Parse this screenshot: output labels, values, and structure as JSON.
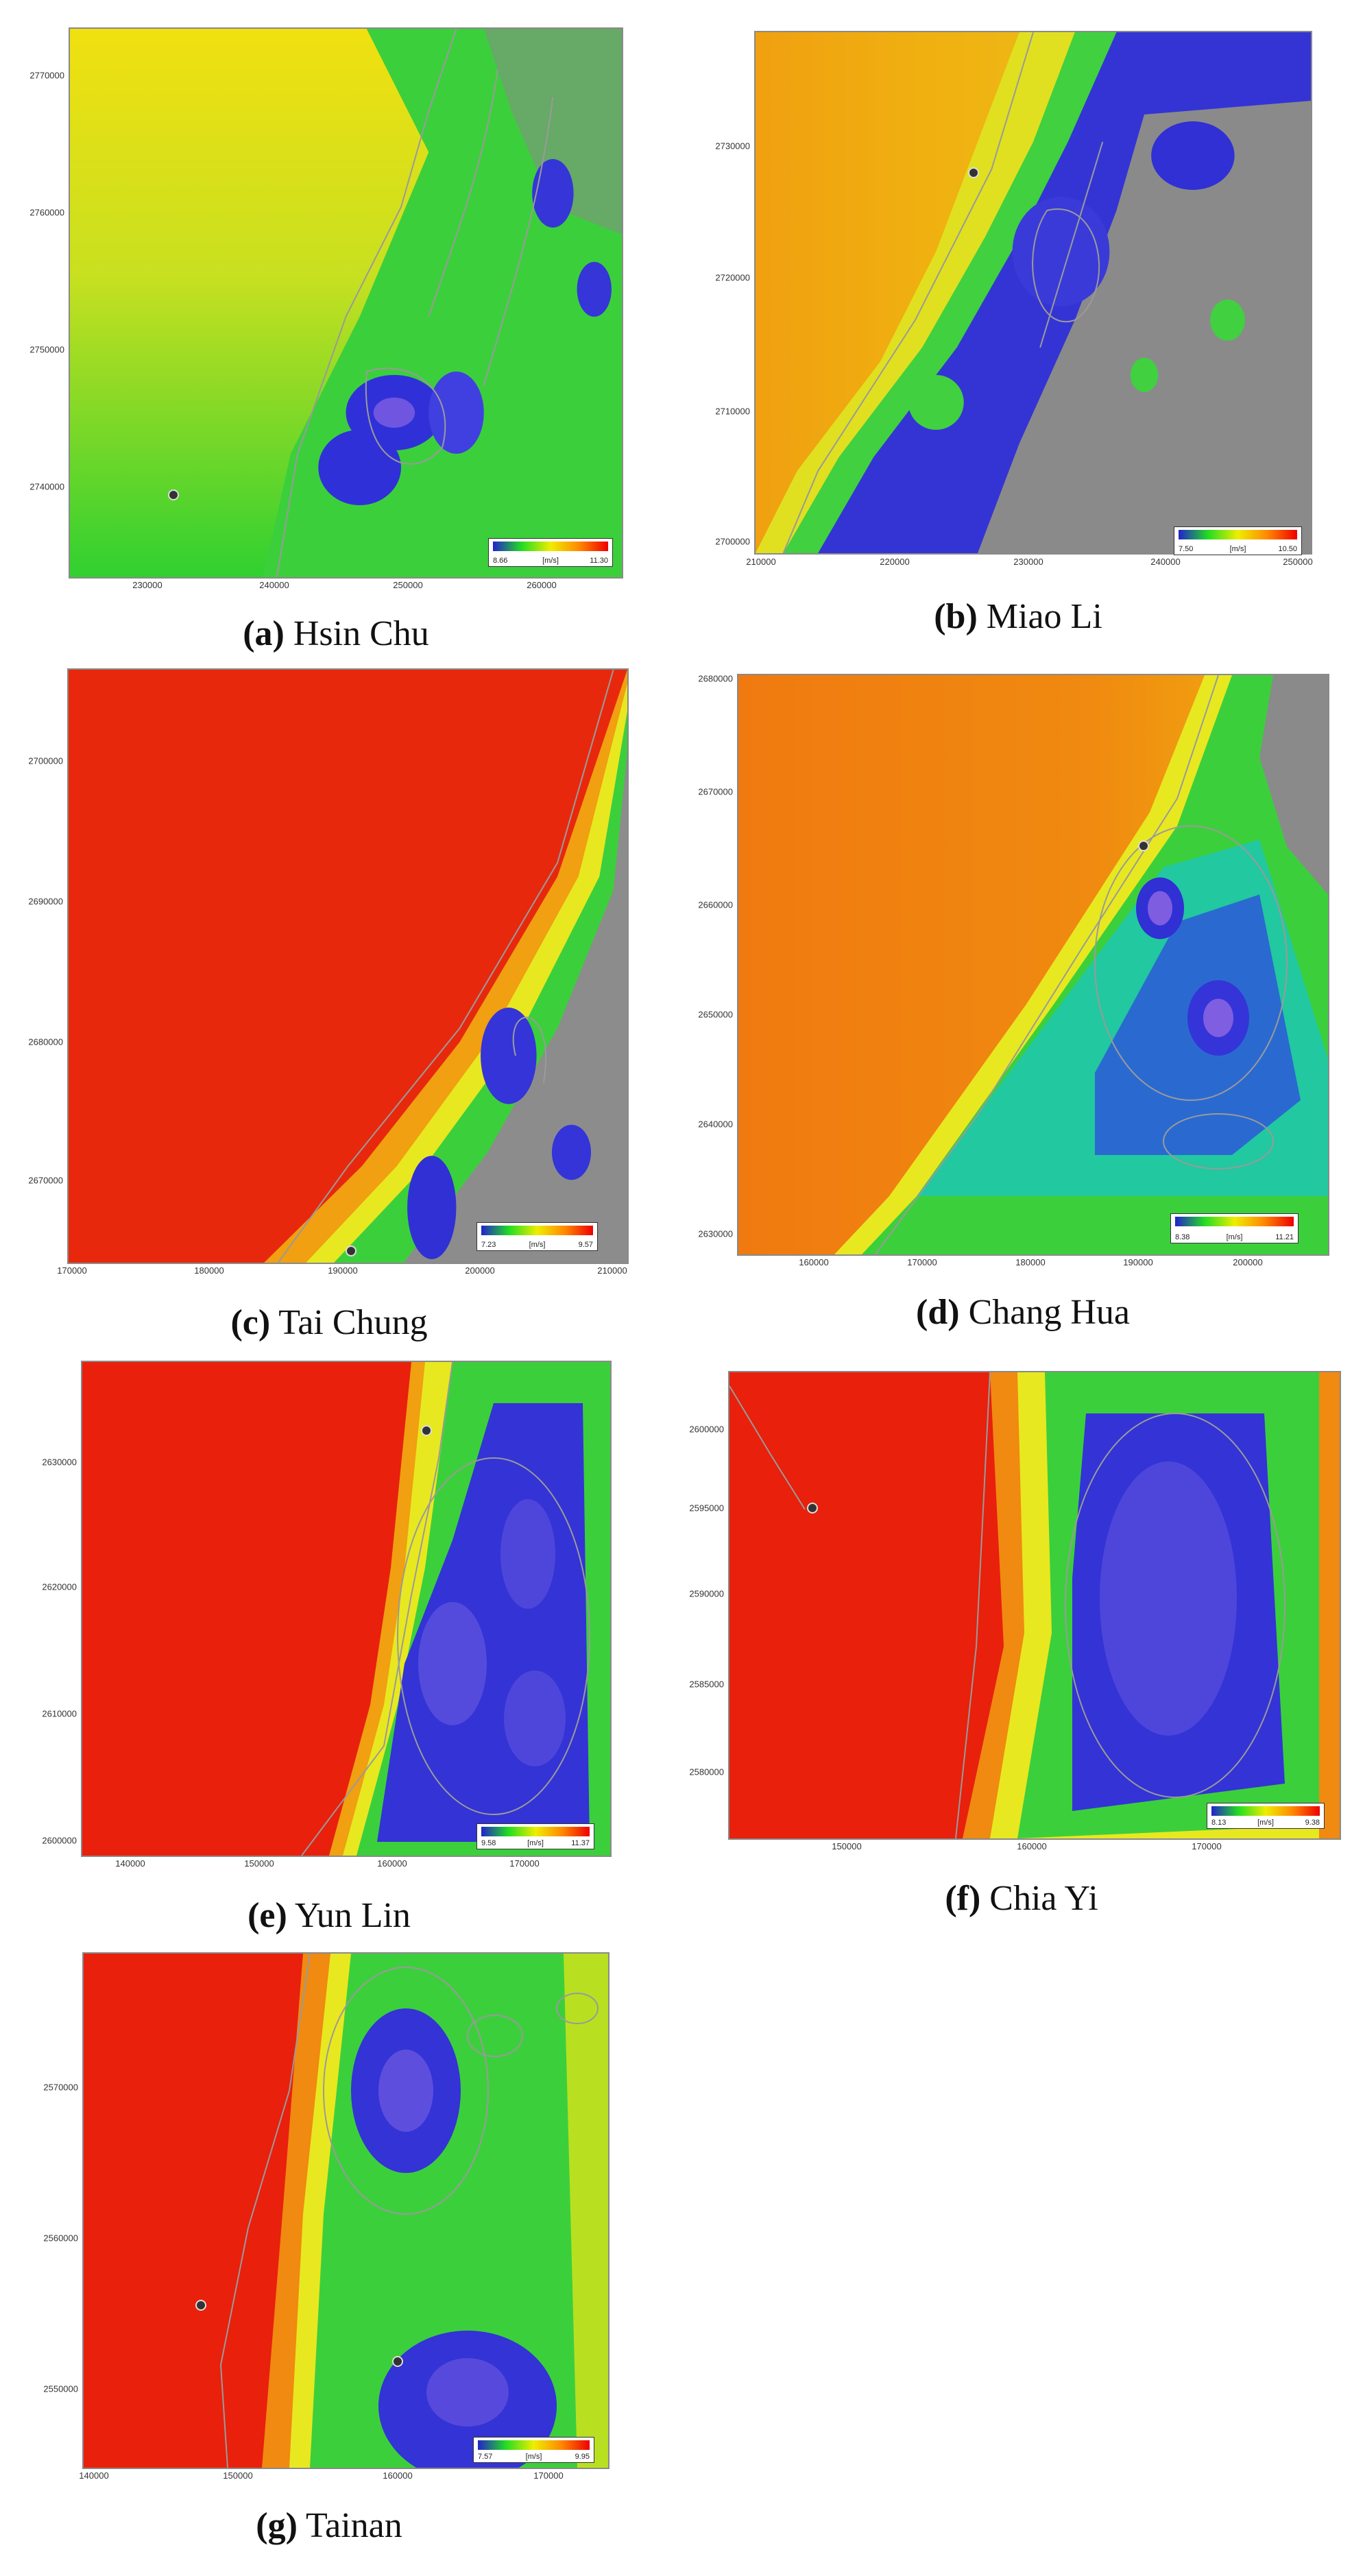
{
  "figure": {
    "panels": [
      {
        "id": "a",
        "letter": "(a)",
        "name": "Hsin Chu",
        "y_ticks": [
          "2770000",
          "2760000",
          "2750000",
          "2740000"
        ],
        "x_ticks": [
          "230000",
          "240000",
          "250000",
          "260000"
        ],
        "legend": {
          "min": "8.66",
          "unit": "[m/s]",
          "max": "11.30"
        }
      },
      {
        "id": "b",
        "letter": "(b)",
        "name": "Miao Li",
        "y_ticks": [
          "2730000",
          "2720000",
          "2710000",
          "2700000"
        ],
        "x_ticks": [
          "210000",
          "220000",
          "230000",
          "240000",
          "250000"
        ],
        "legend": {
          "min": "7.50",
          "unit": "[m/s]",
          "max": "10.50"
        }
      },
      {
        "id": "c",
        "letter": "(c)",
        "name": "Tai Chung",
        "y_ticks": [
          "2700000",
          "2690000",
          "2680000",
          "2670000"
        ],
        "x_ticks": [
          "170000",
          "180000",
          "190000",
          "200000",
          "210000"
        ],
        "legend": {
          "min": "7.23",
          "unit": "[m/s]",
          "max": "9.57"
        }
      },
      {
        "id": "d",
        "letter": "(d)",
        "name": "Chang Hua",
        "y_ticks": [
          "2680000",
          "2670000",
          "2660000",
          "2650000",
          "2640000",
          "2630000"
        ],
        "x_ticks": [
          "160000",
          "170000",
          "180000",
          "190000",
          "200000"
        ],
        "legend": {
          "min": "8.38",
          "unit": "[m/s]",
          "max": "11.21"
        }
      },
      {
        "id": "e",
        "letter": "(e)",
        "name": "Yun Lin",
        "y_ticks": [
          "2630000",
          "2620000",
          "2610000",
          "2600000"
        ],
        "x_ticks": [
          "140000",
          "150000",
          "160000",
          "170000"
        ],
        "legend": {
          "min": "9.58",
          "unit": "[m/s]",
          "max": "11.37"
        }
      },
      {
        "id": "f",
        "letter": "(f)",
        "name": "Chia Yi",
        "y_ticks": [
          "2600000",
          "2595000",
          "2590000",
          "2585000",
          "2580000"
        ],
        "x_ticks": [
          "150000",
          "160000",
          "170000"
        ],
        "legend": {
          "min": "8.13",
          "unit": "[m/s]",
          "max": "9.38"
        }
      },
      {
        "id": "g",
        "letter": "(g)",
        "name": "Tainan",
        "y_ticks": [
          "2570000",
          "2560000",
          "2550000"
        ],
        "x_ticks": [
          "140000",
          "150000",
          "160000",
          "170000"
        ],
        "legend": {
          "min": "7.57",
          "unit": "[m/s]",
          "max": "9.95"
        }
      }
    ],
    "colors": {
      "low": "#2b2bd6",
      "mid": "#22d822",
      "high_yellow": "#eaea10",
      "high_orange": "#f08a00",
      "high_red": "#e81e0a",
      "land_gray": "#8c8c8c",
      "contour": "#9a9a9a"
    }
  }
}
